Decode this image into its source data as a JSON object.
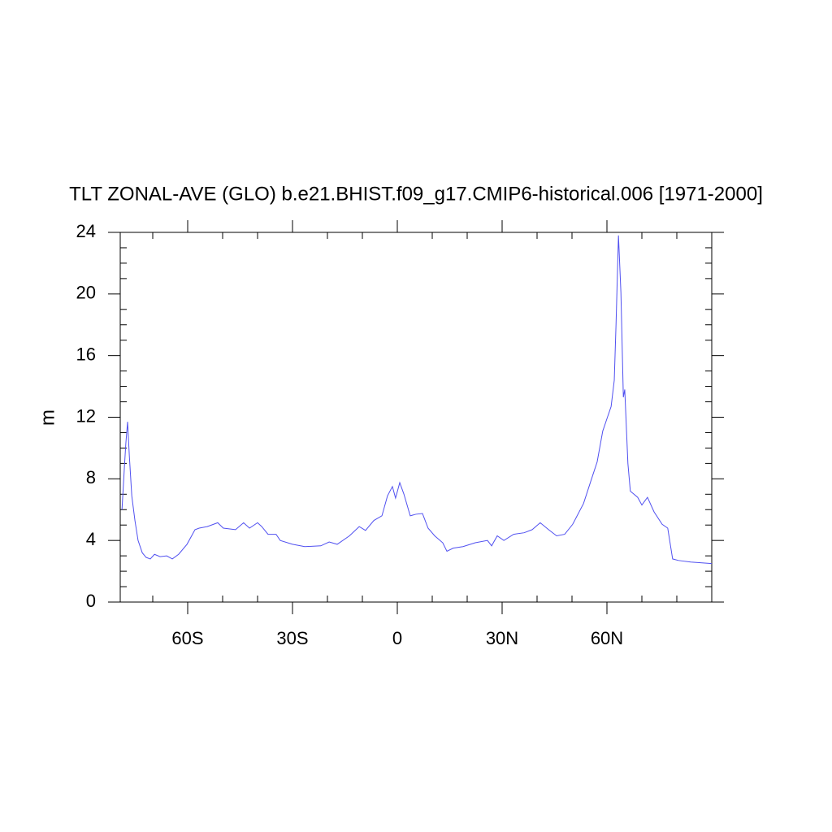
{
  "chart_data": {
    "type": "line",
    "title": "TLT ZONAL-AVE (GLO) b.e21.BHIST.f09_g17.CMIP6-historical.006 [1971-2000]",
    "ylabel": "m",
    "color": "#5050f0",
    "xlim": [
      -79.3,
      90
    ],
    "ylim": [
      0,
      24
    ],
    "xticks": [
      {
        "value": -60,
        "label": "60S"
      },
      {
        "value": -30,
        "label": "30S"
      },
      0,
      {
        "value": 30,
        "label": "30N"
      },
      {
        "value": 60,
        "label": "60N"
      }
    ],
    "xminorticks": [
      -70,
      -50,
      -40,
      -20,
      -10,
      10,
      20,
      40,
      50,
      70,
      80
    ],
    "yticks": [
      0,
      4,
      8,
      12,
      16,
      20,
      24
    ],
    "yminorticks": [
      1,
      2,
      3,
      5,
      6,
      7,
      9,
      10,
      11,
      13,
      14,
      15,
      17,
      18,
      19,
      21,
      22,
      23
    ],
    "x": [
      -78.8,
      -78.1,
      -77.7,
      -77.2,
      -76.7,
      -76.0,
      -75.1,
      -74.2,
      -73.0,
      -71.9,
      -70.7,
      -69.5,
      -67.9,
      -66.0,
      -64.4,
      -62.6,
      -60.2,
      -57.9,
      -56.7,
      -54.4,
      -51.4,
      -49.8,
      -46.3,
      -44.0,
      -42.3,
      -40.0,
      -38.8,
      -37.0,
      -34.7,
      -33.5,
      -30.0,
      -26.5,
      -21.9,
      -19.5,
      -17.2,
      -13.7,
      -10.9,
      -9.1,
      -6.7,
      -4.4,
      -2.8,
      -1.4,
      -0.5,
      0.7,
      1.9,
      3.7,
      5.3,
      7.2,
      8.8,
      10.7,
      13.0,
      14.2,
      16.0,
      18.8,
      22.3,
      25.8,
      27.0,
      28.6,
      30.5,
      33.3,
      36.3,
      38.6,
      40.9,
      43.3,
      45.6,
      47.9,
      50.2,
      53.3,
      55.6,
      57.2,
      58.8,
      60.0,
      61.2,
      62.1,
      62.6,
      63.3,
      64.0,
      64.7,
      65.1,
      66.0,
      66.7,
      68.8,
      70.0,
      71.6,
      73.5,
      75.8,
      77.4,
      78.8,
      80.5,
      84.0,
      90.0
    ],
    "values": [
      6.0,
      8.8,
      10.3,
      11.7,
      9.5,
      6.9,
      5.3,
      4.0,
      3.2,
      2.9,
      2.8,
      3.1,
      2.95,
      3.0,
      2.8,
      3.1,
      3.75,
      4.7,
      4.8,
      4.9,
      5.15,
      4.8,
      4.7,
      5.15,
      4.8,
      5.15,
      4.9,
      4.4,
      4.4,
      4.0,
      3.75,
      3.6,
      3.65,
      3.9,
      3.75,
      4.3,
      4.9,
      4.65,
      5.3,
      5.6,
      6.9,
      7.5,
      6.75,
      7.75,
      7.0,
      5.6,
      5.7,
      5.75,
      4.8,
      4.3,
      3.85,
      3.3,
      3.5,
      3.6,
      3.85,
      4.0,
      3.65,
      4.3,
      4.0,
      4.4,
      4.5,
      4.7,
      5.15,
      4.7,
      4.3,
      4.4,
      5.05,
      6.4,
      8.0,
      9.1,
      11.1,
      11.9,
      12.7,
      14.4,
      18.0,
      23.8,
      20.1,
      13.3,
      13.8,
      9.0,
      7.2,
      6.8,
      6.3,
      6.8,
      5.85,
      5.05,
      4.8,
      2.8,
      2.7,
      2.6,
      2.5
    ]
  }
}
